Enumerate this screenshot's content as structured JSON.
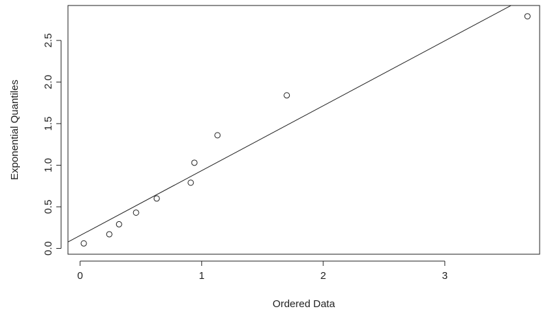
{
  "chart_data": {
    "type": "scatter",
    "title": "",
    "xlabel": "Ordered Data",
    "ylabel": "Exponential Quantiles",
    "xlim": [
      -0.1,
      3.78
    ],
    "ylim": [
      -0.07,
      2.92
    ],
    "x_ticks": [
      0,
      1,
      2,
      3
    ],
    "x_tick_labels": [
      "0",
      "1",
      "2",
      "3"
    ],
    "y_ticks": [
      0,
      0.5,
      1,
      1.5,
      2,
      2.5
    ],
    "y_tick_labels": [
      "0.0",
      "0.5",
      "1.0",
      "1.5",
      "2.0",
      "2.5"
    ],
    "grid": false,
    "points": [
      {
        "x": 0.03,
        "y": 0.06
      },
      {
        "x": 0.24,
        "y": 0.17
      },
      {
        "x": 0.32,
        "y": 0.29
      },
      {
        "x": 0.46,
        "y": 0.43
      },
      {
        "x": 0.63,
        "y": 0.6
      },
      {
        "x": 0.91,
        "y": 0.79
      },
      {
        "x": 0.94,
        "y": 1.03
      },
      {
        "x": 1.13,
        "y": 1.36
      },
      {
        "x": 1.7,
        "y": 1.84
      },
      {
        "x": 3.68,
        "y": 2.79
      }
    ],
    "reference_line": {
      "intercept": 0.155,
      "slope": 0.78
    }
  }
}
